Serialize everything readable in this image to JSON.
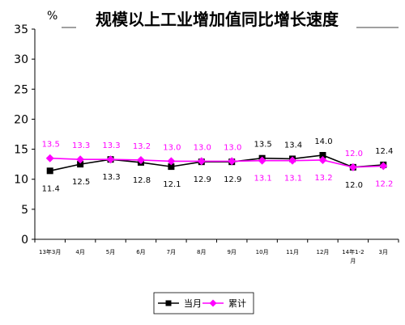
{
  "chart_data": {
    "type": "line",
    "title": "规模以上工业增加值同比增长速度",
    "unit_label": "%",
    "categories": [
      "13年3月",
      "4月",
      "5月",
      "6月",
      "7月",
      "8月",
      "9月",
      "10月",
      "11月",
      "12月",
      "14年1-2月",
      "3月"
    ],
    "ylim": [
      0,
      35
    ],
    "yticks": [
      "0",
      "5",
      "10",
      "15",
      "20",
      "25",
      "30",
      "35"
    ],
    "grid": false,
    "legend_position": "bottom",
    "series": [
      {
        "name": "当月",
        "color": "#000000",
        "marker": "square",
        "values": [
          11.4,
          12.5,
          13.3,
          12.8,
          12.1,
          12.9,
          12.9,
          13.5,
          13.4,
          14.0,
          12.0,
          12.4
        ],
        "labels": [
          "11.4",
          "12.5",
          "13.3",
          "12.8",
          "12.1",
          "12.9",
          "12.9",
          "13.5",
          "13.4",
          "14.0",
          "12.0",
          "12.4"
        ]
      },
      {
        "name": "累计",
        "color": "#ff00ff",
        "marker": "diamond",
        "values": [
          13.5,
          13.3,
          13.3,
          13.2,
          13.0,
          13.0,
          13.0,
          13.1,
          13.1,
          13.2,
          12.0,
          12.2
        ],
        "labels": [
          "13.5",
          "13.3",
          "13.3",
          "13.2",
          "13.0",
          "13.0",
          "13.0",
          "13.1",
          "13.1",
          "13.2",
          "12.0",
          "12.2"
        ]
      }
    ]
  }
}
